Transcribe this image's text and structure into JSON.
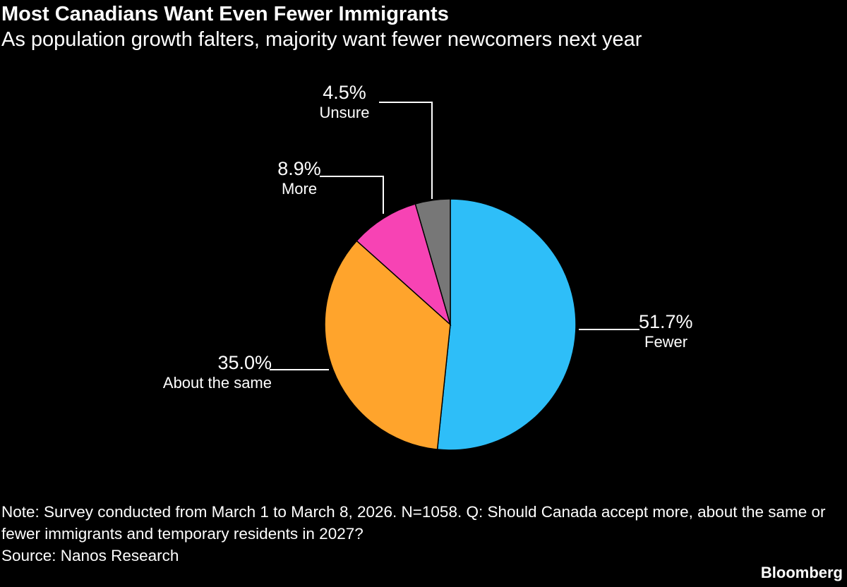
{
  "title": "Most Canadians Want Even Fewer Immigrants",
  "subtitle": "As population growth falters, majority want fewer newcomers next year",
  "chart_data": {
    "type": "pie",
    "start": "top",
    "direction": "clockwise",
    "slices": [
      {
        "label": "Fewer",
        "value": 51.7,
        "display": "51.7%",
        "color": "#2ebef8"
      },
      {
        "label": "About the same",
        "value": 35.0,
        "display": "35.0%",
        "color": "#ffa42c"
      },
      {
        "label": "More",
        "value": 8.9,
        "display": "8.9%",
        "color": "#f743b4"
      },
      {
        "label": "Unsure",
        "value": 4.5,
        "display": "4.5%",
        "color": "#777777"
      }
    ]
  },
  "note": "Note: Survey conducted from March 1 to March 8, 2026. N=1058. Q: Should Canada accept more, about the same or fewer immigrants and temporary residents in 2027?",
  "source": "Source: Nanos Research",
  "brand": "Bloomberg"
}
